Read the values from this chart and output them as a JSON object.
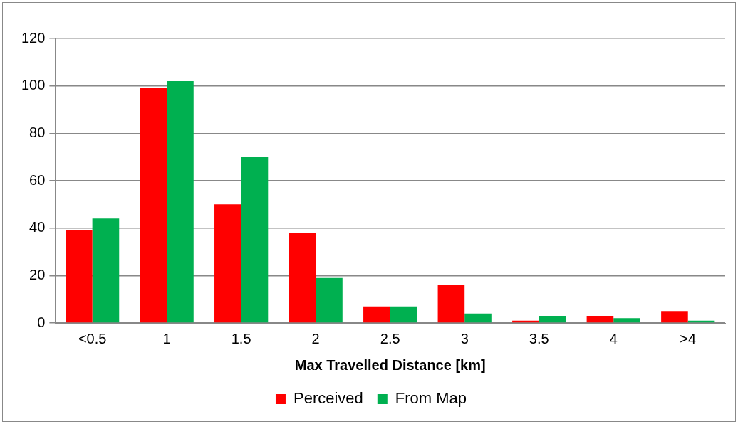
{
  "chart_data": {
    "type": "bar",
    "xlabel": "Max Travelled Distance [km]",
    "categories": [
      "<0.5",
      "1",
      "1.5",
      "2",
      "2.5",
      "3",
      "3.5",
      "4",
      ">4"
    ],
    "series": [
      {
        "name": "Perceived",
        "color": "#ff0000",
        "values": [
          39,
          99,
          50,
          38,
          7,
          16,
          1,
          3,
          5
        ]
      },
      {
        "name": "From Map",
        "color": "#00b050",
        "values": [
          44,
          102,
          70,
          19,
          7,
          4,
          3,
          2,
          1
        ]
      }
    ],
    "ylim": [
      0,
      120
    ],
    "yticks": [
      0,
      20,
      40,
      60,
      80,
      100,
      120
    ],
    "grid": "y",
    "legend": "bottom"
  }
}
